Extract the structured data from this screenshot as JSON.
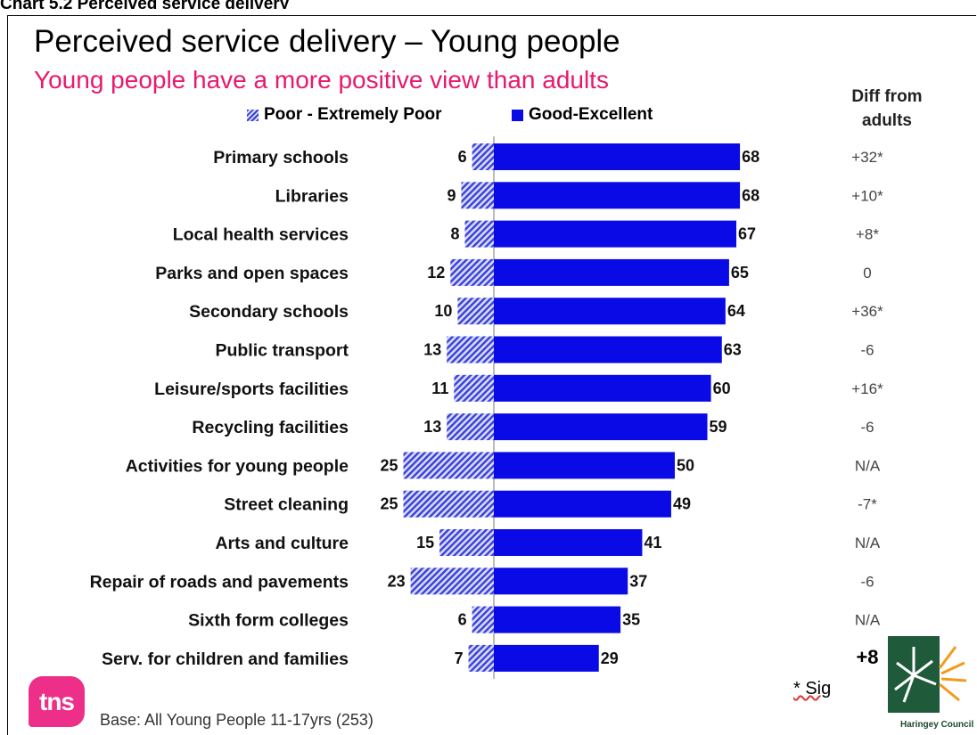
{
  "caption": "Chart 5.2 Perceived service delivery",
  "title": "Perceived service delivery – Young people",
  "subtitle": "Young people have a more positive view than adults",
  "diff_header": [
    "Diff from",
    "adults"
  ],
  "legend": {
    "poor": "Poor - Extremely Poor",
    "good": "Good-Excellent"
  },
  "colors": {
    "good": "#0a0ae6",
    "poor": "#3a3fd8",
    "subtitle": "#e8196e",
    "tns": "#ee2f8a"
  },
  "chart_data": {
    "type": "bar",
    "orientation": "horizontal-diverging",
    "categories": [
      "Primary schools",
      "Libraries",
      "Local health services",
      "Parks and open spaces",
      "Secondary schools",
      "Public transport",
      "Leisure/sports facilities",
      "Recycling facilities",
      "Activities for young people",
      "Street cleaning",
      "Arts and culture",
      "Repair of roads and pavements",
      "Sixth form colleges",
      "Serv. for children and families"
    ],
    "series": [
      {
        "name": "Poor - Extremely Poor",
        "values": [
          6,
          9,
          8,
          12,
          10,
          13,
          11,
          13,
          25,
          25,
          15,
          23,
          6,
          7
        ]
      },
      {
        "name": "Good-Excellent",
        "values": [
          68,
          68,
          67,
          65,
          64,
          63,
          60,
          59,
          50,
          49,
          41,
          37,
          35,
          29
        ]
      }
    ],
    "diff_from_adults": [
      "+32*",
      "+10*",
      "+8*",
      "0",
      "+36*",
      "-6",
      "+16*",
      "-6",
      "N/A",
      "-7*",
      "N/A",
      "-6",
      "N/A",
      "+8"
    ]
  },
  "footnote": "* Sig",
  "base": "Base:  All Young People 11-17yrs (253)",
  "logos": {
    "tns": "tns",
    "council": "Haringey Council"
  }
}
